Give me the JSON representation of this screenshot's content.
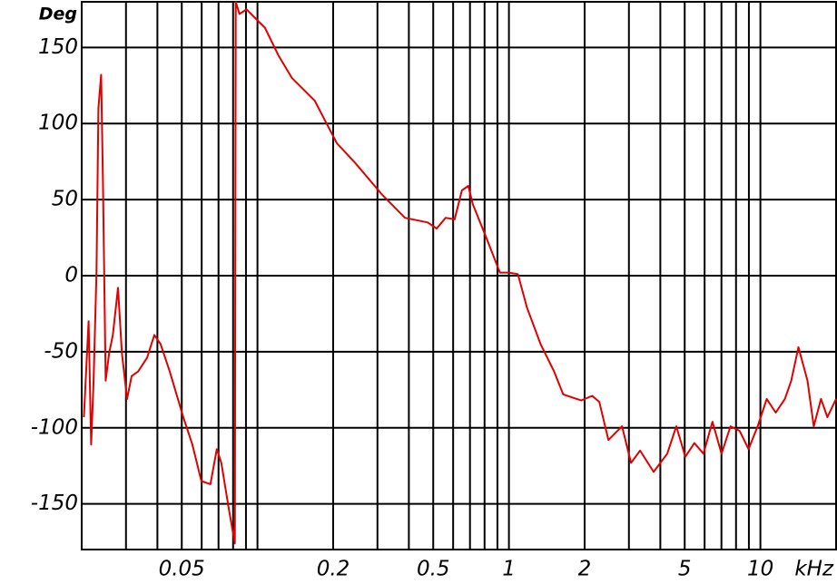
{
  "chart_data": {
    "type": "line",
    "ylabel": "Deg",
    "xunit": "kHz",
    "xscale": "log",
    "grid": true,
    "color": "#e00000",
    "xlim": [
      0.02,
      20
    ],
    "ylim": [
      -180,
      180
    ],
    "xticks": [
      0.05,
      0.2,
      0.5,
      1,
      2,
      5,
      10
    ],
    "xgrid": [
      0.03,
      0.04,
      0.05,
      0.06,
      0.07,
      0.08,
      0.09,
      0.1,
      0.2,
      0.3,
      0.4,
      0.5,
      0.6,
      0.7,
      0.8,
      0.9,
      1,
      2,
      3,
      4,
      5,
      6,
      7,
      8,
      9,
      10
    ],
    "yticks": [
      150,
      100,
      50,
      0,
      -50,
      -100,
      -150
    ],
    "x": [
      0.0204,
      0.0213,
      0.0218,
      0.0223,
      0.0229,
      0.0233,
      0.0239,
      0.0243,
      0.0249,
      0.0257,
      0.0266,
      0.0279,
      0.0289,
      0.0303,
      0.0316,
      0.0335,
      0.0364,
      0.0389,
      0.0412,
      0.0448,
      0.0507,
      0.0551,
      0.0598,
      0.065,
      0.0689,
      0.0718,
      0.0767,
      0.0813,
      0.082,
      0.0848,
      0.0906,
      0.0984,
      0.107,
      0.121,
      0.137,
      0.169,
      0.207,
      0.245,
      0.314,
      0.386,
      0.475,
      0.516,
      0.56,
      0.608,
      0.65,
      0.689,
      0.718,
      0.813,
      0.921,
      1.0,
      1.086,
      1.18,
      1.336,
      1.513,
      1.644,
      1.94,
      2.142,
      2.289,
      2.487,
      2.816,
      3.059,
      3.323,
      3.763,
      4.261,
      4.63,
      5.029,
      5.463,
      5.935,
      6.447,
      7.003,
      7.607,
      8.264,
      8.978,
      9.754,
      10.6,
      11.51,
      12.51,
      13.26,
      14.16,
      15.39,
      16.3,
      17.42,
      18.46,
      20
    ],
    "values": [
      -93,
      -30,
      -111,
      -69,
      2,
      110,
      132,
      62,
      -69,
      -51,
      -39,
      -8,
      -51,
      -81,
      -66,
      -63,
      -54,
      -39,
      -45,
      -63,
      -93,
      -111,
      -135,
      -137,
      -114,
      -123,
      -152,
      -176,
      180,
      172,
      175,
      169,
      163,
      145,
      130,
      115,
      87,
      74,
      53,
      38,
      35,
      31,
      38,
      37,
      56,
      59,
      47,
      25,
      2,
      2,
      1,
      -21,
      -45,
      -63,
      -78,
      -82,
      -79,
      -83,
      -108,
      -99,
      -123,
      -115,
      -129,
      -117,
      -99,
      -119,
      -110,
      -117,
      -96,
      -117,
      -99,
      -102,
      -114,
      -99,
      -81,
      -90,
      -81,
      -69,
      -47,
      -69,
      -99,
      -81,
      -93,
      -81
    ]
  }
}
